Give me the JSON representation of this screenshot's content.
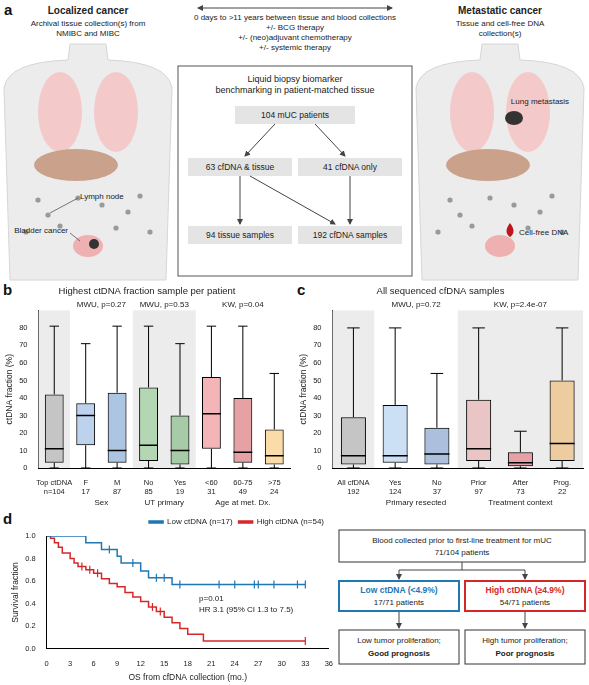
{
  "panel_labels": [
    "a",
    "b",
    "c",
    "d"
  ],
  "panel_a": {
    "left": {
      "title": "Localized cancer",
      "subtitle": [
        "Archival tissue collection(s) from",
        "NMIBC and MIBC"
      ],
      "labels": [
        "Lymph node",
        "Bladder cancer"
      ]
    },
    "middle": [
      "0 days to >11 years between tissue and blood collections",
      "+/- BCG therapy",
      "+/- (neo)adjuvant chemotherapy",
      "+/- systemic therapy"
    ],
    "right": {
      "title": "Metastatic cancer",
      "subtitle": [
        "Tissue and cell-free DNA",
        "collection(s)"
      ],
      "labels": [
        "Lung metastasis",
        "Cell-free DNA"
      ]
    },
    "box": {
      "title": [
        "Liquid biopsy biomarker",
        "benchmarking in patient-matched tissue"
      ],
      "root": "104 mUC patients",
      "branches": [
        "63 cfDNA & tissue",
        "41 cfDNA only"
      ],
      "leaves": [
        "94 tissue samples",
        "192 cfDNA samples"
      ]
    }
  },
  "chart_data": [
    {
      "type": "box",
      "title": "Highest ctDNA fraction sample per patient",
      "y_label": "ctDNA fraction (%)",
      "categories": [
        [
          "Top ctDNA",
          "n=104"
        ],
        [
          "F",
          "17"
        ],
        [
          "M",
          "87"
        ],
        [
          "No",
          "85"
        ],
        [
          "Yes",
          "19"
        ],
        [
          "<60",
          "31"
        ],
        [
          "60-75",
          "49"
        ],
        [
          ">75",
          "24"
        ]
      ],
      "groups": [
        {
          "label": "Sex",
          "members": [
            1,
            2
          ],
          "stat": "MWU, p=0.27"
        },
        {
          "label": "UT primary",
          "members": [
            3,
            4
          ],
          "stat": "MWU, p=0.53"
        },
        {
          "label": "Age at met. Dx.",
          "members": [
            5,
            6,
            7
          ],
          "stat": "KW, p=0.04"
        }
      ],
      "whisker_low": [
        0,
        0,
        0,
        0,
        0,
        0,
        0,
        0
      ],
      "q1": [
        3,
        13,
        3,
        4,
        2,
        11,
        3,
        2
      ],
      "median": [
        11,
        30,
        10,
        13,
        10,
        31,
        9,
        7
      ],
      "q3": [
        42,
        37,
        43,
        46,
        30,
        52,
        40,
        22
      ],
      "whisker_high": [
        81,
        71,
        81,
        81,
        71,
        81,
        81,
        54
      ],
      "colors": [
        "#8c8c8c",
        "#5b8fd0",
        "#2f6db8",
        "#5cb85c",
        "#3f9a3f",
        "#e0474c",
        "#c0141c",
        "#f5a623"
      ],
      "ylim": [
        0,
        90
      ],
      "yticks": [
        0,
        10,
        20,
        30,
        40,
        50,
        60,
        70,
        80
      ],
      "grid": false
    },
    {
      "type": "box",
      "title": "All sequenced cfDNA samples",
      "y_label": "ctDNA fraction (%)",
      "categories": [
        [
          "All cfDNA",
          "192"
        ],
        [
          "Yes",
          "124"
        ],
        [
          "No",
          "37"
        ],
        [
          "Prior",
          "97"
        ],
        [
          "After",
          "73"
        ],
        [
          "Prog.",
          "22"
        ]
      ],
      "groups": [
        {
          "label": "Primary resected",
          "members": [
            1,
            2
          ],
          "stat": "MWU, p=0.72"
        },
        {
          "label": "Treatment context",
          "members": [
            3,
            4,
            5
          ],
          "stat": "KW, p=2.4e-07"
        }
      ],
      "whisker_low": [
        0,
        0,
        0,
        0,
        0,
        0
      ],
      "q1": [
        2,
        3,
        2,
        4,
        1,
        4
      ],
      "median": [
        7,
        7,
        8,
        11,
        3,
        14
      ],
      "q3": [
        29,
        36,
        23,
        39,
        9,
        50
      ],
      "whisker_high": [
        80,
        80,
        54,
        80,
        21,
        80
      ],
      "colors": [
        "#8c8c8c",
        "#7fb2e5",
        "#2f5fa8",
        "#e58b8b",
        "#e03040",
        "#f0a030"
      ],
      "ylim": [
        0,
        90
      ],
      "yticks": [
        0,
        10,
        20,
        30,
        40,
        50,
        60,
        70,
        80
      ],
      "grid": false
    },
    {
      "type": "line",
      "x_label": "OS from cfDNA collection (mo.)",
      "y_label": "Survival fraction",
      "xlim": [
        0,
        36
      ],
      "xticks": [
        0,
        3,
        6,
        9,
        12,
        15,
        18,
        21,
        24,
        27,
        30,
        33,
        36
      ],
      "ylim": [
        0,
        1
      ],
      "yticks": [
        {
          "value": 0,
          "label": "0.0"
        },
        0.2,
        0.4,
        0.6,
        0.8,
        {
          "value": 1,
          "label": "1.0"
        }
      ],
      "line_style": "stepped",
      "legend": "upper right",
      "grid": false,
      "series": [
        {
          "name": "Low ctDNA (n=17)",
          "color": "#1f77b4",
          "x": [
            0,
            5,
            7,
            9,
            9.5,
            12,
            13,
            16,
            33
          ],
          "values": [
            1,
            0.94,
            0.88,
            0.82,
            0.76,
            0.69,
            0.63,
            0.57,
            0.57
          ],
          "censored_x": [
            8,
            11,
            14,
            15,
            17,
            22,
            24,
            26.5,
            27,
            29,
            32,
            33
          ],
          "censored_values": [
            0.88,
            0.76,
            0.63,
            0.63,
            0.57,
            0.57,
            0.57,
            0.57,
            0.57,
            0.57,
            0.57,
            0.57
          ]
        },
        {
          "name": "High ctDNA (n=54)",
          "color": "#d62728",
          "x": [
            0,
            0.5,
            1,
            1.5,
            2,
            3,
            3.5,
            4,
            5,
            6,
            7,
            8,
            9,
            10,
            11,
            12,
            13,
            14,
            15,
            16,
            17,
            18,
            20,
            33
          ],
          "values": [
            1,
            0.98,
            0.94,
            0.9,
            0.85,
            0.8,
            0.76,
            0.73,
            0.7,
            0.67,
            0.62,
            0.58,
            0.55,
            0.5,
            0.46,
            0.42,
            0.37,
            0.33,
            0.28,
            0.23,
            0.18,
            0.13,
            0.07,
            0.07
          ],
          "censored_x": [
            4.5,
            5.5,
            6.5,
            13.5,
            14.5,
            33
          ],
          "censored_values": [
            0.73,
            0.7,
            0.67,
            0.37,
            0.33,
            0.07
          ]
        }
      ],
      "annotations": [
        "p=0.01",
        "HR 3.1 (95% CI 1.3 to 7.5)"
      ]
    }
  ],
  "flow": {
    "top": [
      "Blood collected prior to first-line treatment for mUC",
      "71/104 patients"
    ],
    "left": {
      "title": "Low ctDNA (<4.9%)",
      "count": "17/71 patients",
      "outcome": [
        "Low tumor proliferation;",
        "Good prognosis"
      ],
      "color": "#1f77b4"
    },
    "right": {
      "title": "High ctDNA (≥4.9%)",
      "count": "54/71 patients",
      "outcome": [
        "High tumor proliferation;",
        "Poor prognosis"
      ],
      "color": "#d62728"
    }
  }
}
